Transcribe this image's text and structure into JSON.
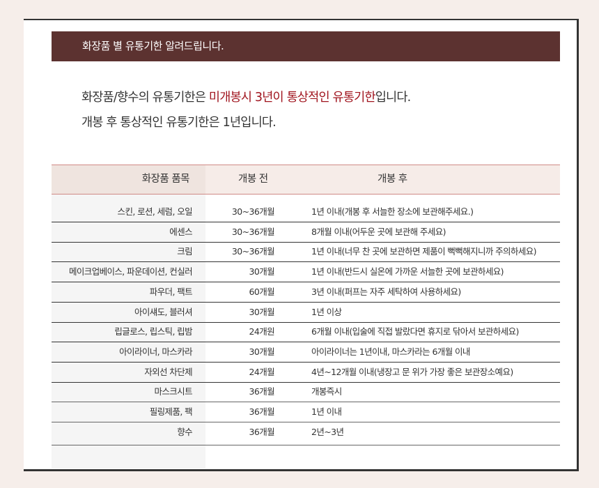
{
  "header": {
    "title": "화장품 별 유통기한 알려드립니다."
  },
  "intro": {
    "line1_pre": "화장품/향수의 유통기한은 ",
    "line1_highlight": "미개봉시 3년이 통상적인 유통기한",
    "line1_post": "입니다.",
    "line2": "개봉 후 통상적인 유통기한은 1년입니다.",
    "highlight_color": "#a0141e"
  },
  "table": {
    "headers": [
      "화장품 품목",
      "개봉 전",
      "개봉 후"
    ],
    "rows": [
      [
        "스킨, 로션, 세럼, 오일",
        "30~36개월",
        "1년 이내(개봉 후 서늘한 장소에 보관해주세요.)"
      ],
      [
        "에센스",
        "30~36개월",
        "8개월 이내(어두운 곳에 보관해 주세요)"
      ],
      [
        "크림",
        "30~36개월",
        "1년 이내(너무 찬 곳에 보관하면 제품이 뻑뻑해지니까 주의하세요)"
      ],
      [
        "메이크업베이스, 파운데이션, 컨실러",
        "30개월",
        "1년 이내(반드시 실온에 가까운 서늘한 곳에 보관하세요)"
      ],
      [
        "파우더, 팩트",
        "60개월",
        "3년 이내(퍼프는 자주 세탁하여 사용하세요)"
      ],
      [
        "아이섀도, 블러셔",
        "30개월",
        "1년 이상"
      ],
      [
        "립글로스, 립스틱, 립밤",
        "24개원",
        "6개월 이내(입술에 직접 발랐다면 휴지로 닦아서 보관하세요)"
      ],
      [
        "아이라이너, 마스카라",
        "30개월",
        "아이라이너는 1년이내, 마스카라는 6개월 이내"
      ],
      [
        "자외선 차단제",
        "24개월",
        "4년~12개월 이내(냉장고 문 위가 가장 좋은 보관장소예요)"
      ],
      [
        "마스크시트",
        "36개월",
        "개봉즉시"
      ],
      [
        "필링제품, 팩",
        "36개월",
        "1년 이내"
      ],
      [
        "향수",
        "36개월",
        "2년~3년"
      ]
    ]
  }
}
